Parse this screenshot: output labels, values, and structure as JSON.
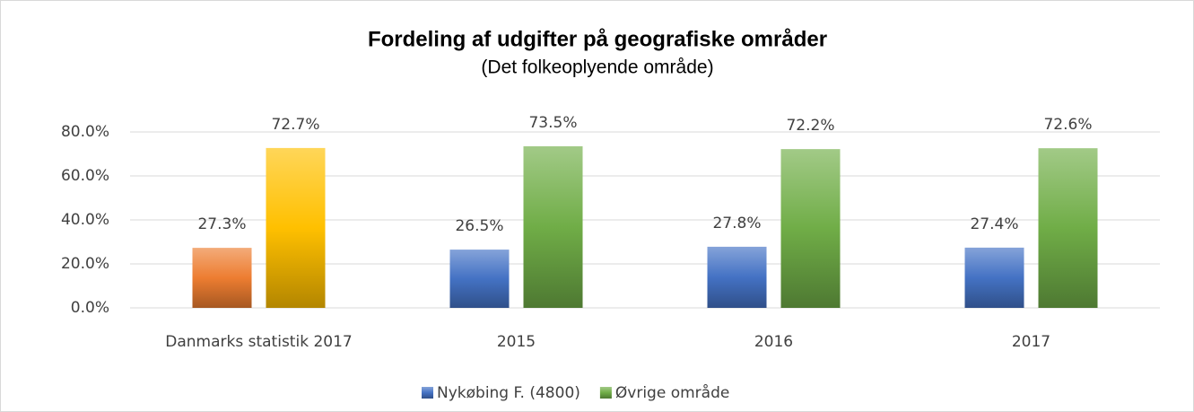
{
  "chart_data": {
    "type": "bar",
    "title": "Fordeling af udgifter på geografiske områder",
    "subtitle": "(Det folkeoplyende område)",
    "categories": [
      "Danmarks statistik 2017",
      "2015",
      "2016",
      "2017"
    ],
    "series": [
      {
        "name": "Nykøbing F. (4800)",
        "color": "#4472c4",
        "colors": [
          "#ed7d31",
          "#4472c4",
          "#4472c4",
          "#4472c4"
        ],
        "values": [
          27.3,
          26.5,
          27.8,
          27.4
        ],
        "value_labels": [
          "27.3%",
          "26.5%",
          "27.8%",
          "27.4%"
        ]
      },
      {
        "name": "Øvrige område",
        "color": "#70ad47",
        "colors": [
          "#ffc000",
          "#70ad47",
          "#70ad47",
          "#70ad47"
        ],
        "values": [
          72.7,
          73.5,
          72.2,
          72.6
        ],
        "value_labels": [
          "72.7%",
          "73.5%",
          "72.2%",
          "72.6%"
        ]
      }
    ],
    "ylim": [
      0,
      80
    ],
    "yticks": [
      {
        "value": 0,
        "label": "0.0%"
      },
      {
        "value": 20,
        "label": "20.0%"
      },
      {
        "value": 40,
        "label": "40.0%"
      },
      {
        "value": 60,
        "label": "60.0%"
      },
      {
        "value": 80,
        "label": "80.0%"
      }
    ],
    "grid": true,
    "legend": "bottom"
  }
}
